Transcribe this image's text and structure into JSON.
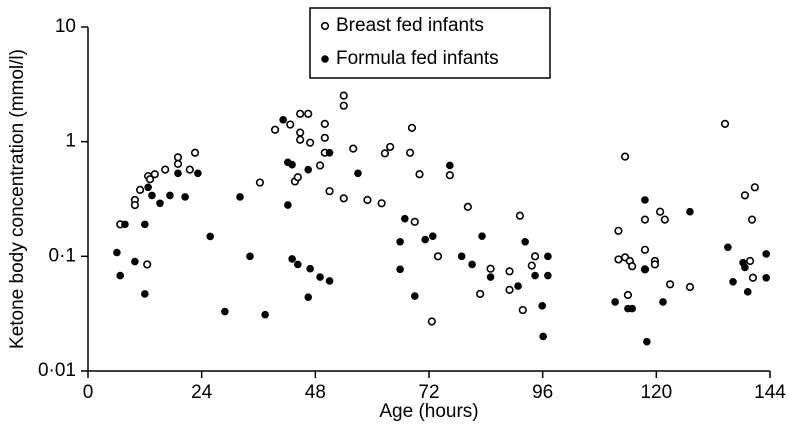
{
  "chart_data": {
    "type": "scatter",
    "x_label": "Age (hours)",
    "y_label": "Ketone body concentration (mmol/l)",
    "xlim": [
      0,
      144
    ],
    "xticks": [
      0,
      24,
      48,
      72,
      96,
      120,
      144
    ],
    "ylim": [
      0.01,
      10
    ],
    "log_y": true,
    "yticks": [
      {
        "value": 0.01,
        "label": "0·01"
      },
      {
        "value": 0.1,
        "label": "0·1"
      },
      {
        "value": 1,
        "label": "1"
      },
      {
        "value": 10,
        "label": "10"
      }
    ],
    "legend": "top",
    "series": [
      {
        "name": "Breast fed infants",
        "color": "#000000",
        "hollow": true,
        "x": [
          6.8,
          9.9,
          9.9,
          11,
          12.7,
          13.1,
          14.1,
          16.3,
          19,
          19,
          21.5,
          22.6,
          12.5,
          36.3,
          39.5,
          42.7,
          44.8,
          44.8,
          44.8,
          43.7,
          44.3,
          46.5,
          46.9,
          49,
          50,
          50,
          50,
          51,
          54,
          54,
          54,
          56,
          59,
          62,
          62.7,
          63.8,
          68,
          68.4,
          69,
          70,
          72.6,
          73.9,
          76.4,
          80.2,
          82.8,
          85,
          89,
          89,
          91.2,
          91.8,
          93.7,
          94.4,
          113.4,
          112,
          112,
          113.4,
          114.4,
          114.9,
          114,
          117.6,
          117.6,
          117.6,
          119.7,
          119.7,
          120.8,
          121.8,
          122.9,
          127.1,
          134.5,
          138.7,
          139.8,
          140.2,
          140.8,
          140.4
        ],
        "values": [
          0.19,
          0.31,
          0.28,
          0.38,
          0.5,
          0.47,
          0.52,
          0.57,
          0.64,
          0.73,
          0.57,
          0.8,
          0.085,
          0.44,
          1.27,
          1.41,
          1.75,
          1.2,
          1.04,
          0.45,
          0.49,
          1.75,
          0.98,
          0.62,
          1.08,
          1.43,
          0.8,
          0.37,
          2.52,
          2.06,
          0.32,
          0.87,
          0.31,
          0.29,
          0.79,
          0.9,
          0.8,
          1.32,
          0.2,
          0.52,
          0.027,
          0.1,
          0.51,
          0.27,
          0.047,
          0.078,
          0.051,
          0.074,
          0.226,
          0.034,
          0.083,
          0.1,
          0.74,
          0.167,
          0.094,
          0.098,
          0.091,
          0.082,
          0.046,
          0.209,
          0.114,
          0.077,
          0.091,
          0.085,
          0.245,
          0.209,
          0.057,
          0.054,
          1.43,
          0.34,
          0.091,
          0.209,
          0.4,
          0.065
        ]
      },
      {
        "name": "Formula fed infants",
        "color": "#000000",
        "hollow": false,
        "x": [
          6.1,
          6.8,
          7.8,
          9.9,
          12,
          12,
          12.7,
          13.5,
          15.2,
          17.3,
          19,
          20.5,
          23.2,
          25.8,
          28.9,
          32.1,
          34.2,
          37.4,
          41.2,
          42.2,
          42.2,
          43.1,
          43.1,
          44.3,
          46.5,
          46.5,
          46.9,
          49,
          51,
          51,
          57,
          65.9,
          65.9,
          66.9,
          69,
          71.2,
          72.8,
          76.4,
          78.9,
          81.1,
          83.2,
          85,
          90.8,
          92.3,
          94.4,
          95.9,
          96.1,
          97.1,
          97.1,
          111.3,
          114,
          114.9,
          117.6,
          117.6,
          118,
          121.4,
          127.1,
          135.1,
          136.2,
          138.3,
          138.7,
          139.3,
          143.2,
          143.2
        ],
        "values": [
          0.108,
          0.068,
          0.19,
          0.09,
          0.19,
          0.047,
          0.4,
          0.34,
          0.29,
          0.34,
          0.53,
          0.33,
          0.53,
          0.149,
          0.033,
          0.33,
          0.1,
          0.031,
          1.55,
          0.66,
          0.28,
          0.63,
          0.095,
          0.085,
          0.57,
          0.044,
          0.078,
          0.066,
          0.8,
          0.061,
          0.53,
          0.134,
          0.077,
          0.213,
          0.045,
          0.14,
          0.15,
          0.62,
          0.1,
          0.085,
          0.15,
          0.066,
          0.055,
          0.134,
          0.068,
          0.037,
          0.02,
          0.1,
          0.068,
          0.04,
          0.035,
          0.035,
          0.31,
          0.077,
          0.018,
          0.04,
          0.245,
          0.12,
          0.06,
          0.088,
          0.08,
          0.049,
          0.105,
          0.065
        ]
      }
    ]
  }
}
